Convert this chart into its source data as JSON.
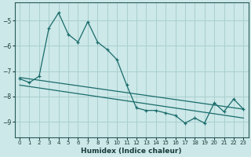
{
  "xlabel": "Humidex (Indice chaleur)",
  "background_color": "#cce8e8",
  "grid_color": "#aacfcf",
  "line_color": "#1a6b6b",
  "xlim": [
    -0.5,
    23.5
  ],
  "ylim": [
    -9.6,
    -4.3
  ],
  "xticks": [
    0,
    1,
    2,
    3,
    4,
    5,
    6,
    7,
    8,
    9,
    10,
    11,
    12,
    13,
    14,
    15,
    16,
    17,
    18,
    19,
    20,
    21,
    22,
    23
  ],
  "yticks": [
    -9,
    -8,
    -7,
    -6,
    -5
  ],
  "line1_x": [
    0,
    1,
    2,
    3,
    4,
    5,
    6,
    7,
    8,
    9,
    10,
    11,
    12,
    13,
    14,
    15,
    16,
    17,
    18,
    19,
    20,
    21,
    22,
    23
  ],
  "line1_y": [
    -7.3,
    -7.45,
    -7.2,
    -5.3,
    -4.7,
    -5.55,
    -5.85,
    -5.05,
    -5.85,
    -6.15,
    -6.55,
    -7.55,
    -8.45,
    -8.55,
    -8.55,
    -8.65,
    -8.75,
    -9.05,
    -8.85,
    -9.05,
    -8.25,
    -8.6,
    -8.1,
    -8.5
  ],
  "trend1_x": [
    0,
    23
  ],
  "trend1_y": [
    -7.25,
    -8.5
  ],
  "trend2_x": [
    0,
    23
  ],
  "trend2_y": [
    -7.55,
    -8.85
  ]
}
